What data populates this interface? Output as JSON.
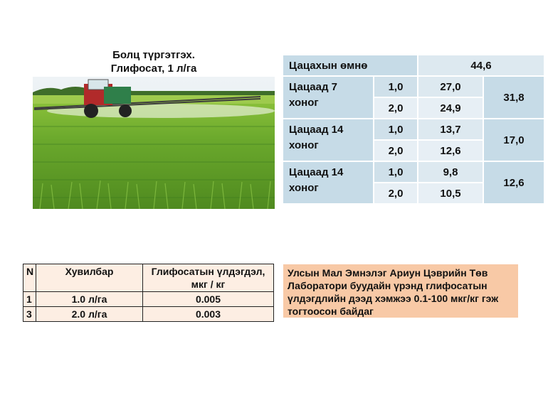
{
  "photo": {
    "caption_line1": "Болц түргэтгэх.",
    "caption_line2": "Глифосат, 1 л/га"
  },
  "results": {
    "before_label": "Цацахын өмнө",
    "before_value": "44,6",
    "groups": [
      {
        "label": "Цацаад 7 хоног",
        "rows": [
          {
            "dose": "1,0",
            "value": "27,0"
          },
          {
            "dose": "2,0",
            "value": "24,9"
          }
        ],
        "average": "31,8"
      },
      {
        "label": "Цацаад 14 хоног",
        "rows": [
          {
            "dose": "1,0",
            "value": "13,7"
          },
          {
            "dose": "2,0",
            "value": "12,6"
          }
        ],
        "average": "17,0"
      },
      {
        "label": "Цацаад 14 хоног",
        "rows": [
          {
            "dose": "1,0",
            "value": "9,8"
          },
          {
            "dose": "2,0",
            "value": "10,5"
          }
        ],
        "average": "12,6"
      }
    ]
  },
  "residue": {
    "headers": [
      "N",
      "Хувилбар",
      "Глифосатын үлдэгдэл,  мкг / кг"
    ],
    "rows": [
      {
        "n": "1",
        "variant": "1.0 л/га",
        "value": "0.005"
      },
      {
        "n": "3",
        "variant": "2.0 л/га",
        "value": "0.003"
      }
    ]
  },
  "note": {
    "text": "Улсын Мал Эмнэлэг Ариун Цэврийн Төв Лаборатори буудайн үрэнд глифосатын үлдэгдлийн дээд хэмжээ 0.1-100 мкг/кг гэж тогтоосон байдаг"
  },
  "colors": {
    "table_header": "#c6dbe7",
    "table_cell": "#dde9f0",
    "residue_bg": "#fdeee3",
    "note_bg": "#f8c9a6"
  }
}
